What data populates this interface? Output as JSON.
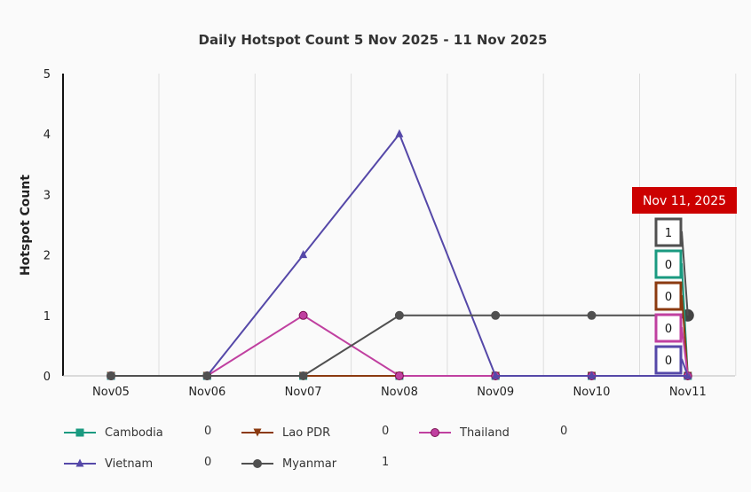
{
  "chart_data": {
    "type": "line",
    "title": "Daily Hotspot Count 5 Nov 2025 - 11 Nov 2025",
    "xlabel": "",
    "ylabel": "Hotspot Count",
    "categories": [
      "Nov05",
      "Nov06",
      "Nov07",
      "Nov08",
      "Nov09",
      "Nov10",
      "Nov11"
    ],
    "ylim": [
      0,
      5
    ],
    "yticks": [
      "0",
      "1",
      "2",
      "3",
      "4",
      "5"
    ],
    "grid": "vertical",
    "legend_position": "bottom",
    "series": [
      {
        "name": "Cambodia",
        "color": "#1a9a80",
        "marker": "square",
        "values": [
          0,
          0,
          0,
          0,
          0,
          0,
          0
        ],
        "latest": "0"
      },
      {
        "name": "Lao PDR",
        "color": "#8b3a10",
        "marker": "triangle-down",
        "values": [
          0,
          0,
          0,
          0,
          0,
          0,
          0
        ],
        "latest": "0"
      },
      {
        "name": "Thailand",
        "color": "#c040a0",
        "marker": "circle",
        "values": [
          0,
          0,
          1,
          0,
          0,
          0,
          0
        ],
        "latest": "0"
      },
      {
        "name": "Vietnam",
        "color": "#5548a8",
        "marker": "triangle-up",
        "values": [
          0,
          0,
          2,
          4,
          0,
          0,
          0
        ],
        "latest": "0"
      },
      {
        "name": "Myanmar",
        "color": "#505050",
        "marker": "circle",
        "values": [
          0,
          0,
          0,
          1,
          1,
          1,
          1
        ],
        "latest": "1"
      }
    ],
    "tooltip": {
      "header": "Nov 11, 2025",
      "header_color": "#cc0000",
      "order": [
        4,
        0,
        1,
        2,
        3
      ]
    }
  }
}
